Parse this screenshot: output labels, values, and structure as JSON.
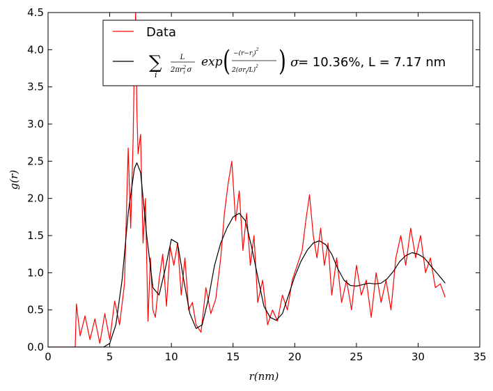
{
  "chart_data": {
    "type": "line",
    "xlabel": "r(nm)",
    "ylabel": "g(r)",
    "xlim": [
      0,
      35
    ],
    "ylim": [
      0,
      4.5
    ],
    "xticks": [
      "0",
      "5",
      "10",
      "15",
      "20",
      "25",
      "30",
      "35"
    ],
    "yticks": [
      "0.0",
      "0.5",
      "1.0",
      "1.5",
      "2.0",
      "2.5",
      "3.0",
      "3.5",
      "4.0",
      "4.5"
    ],
    "grid": false,
    "legend_position": "top-right",
    "colors": {
      "data": "#ff0000",
      "fit": "#000000"
    },
    "series": [
      {
        "name": "Data",
        "x": [
          0,
          2.2,
          2.3,
          2.6,
          3.0,
          3.4,
          3.8,
          4.2,
          4.6,
          5.0,
          5.4,
          5.8,
          6.2,
          6.5,
          6.7,
          6.9,
          7.0,
          7.1,
          7.2,
          7.3,
          7.5,
          7.7,
          7.9,
          8.1,
          8.3,
          8.5,
          8.7,
          9.0,
          9.3,
          9.6,
          9.9,
          10.2,
          10.5,
          10.8,
          11.1,
          11.4,
          11.7,
          12.0,
          12.4,
          12.8,
          13.2,
          13.6,
          14.0,
          14.3,
          14.6,
          14.9,
          15.2,
          15.5,
          15.8,
          16.1,
          16.4,
          16.7,
          17.0,
          17.4,
          17.8,
          18.2,
          18.6,
          19.0,
          19.4,
          19.8,
          20.2,
          20.6,
          20.9,
          21.2,
          21.5,
          21.8,
          22.1,
          22.4,
          22.7,
          23.0,
          23.4,
          23.8,
          24.2,
          24.6,
          25.0,
          25.4,
          25.8,
          26.2,
          26.6,
          27.0,
          27.4,
          27.8,
          28.2,
          28.6,
          29.0,
          29.4,
          29.8,
          30.2,
          30.6,
          31.0,
          31.4,
          31.8,
          32.2
        ],
        "values": [
          0,
          0,
          0.58,
          0.15,
          0.42,
          0.1,
          0.38,
          0.05,
          0.45,
          0.1,
          0.62,
          0.3,
          0.85,
          2.68,
          1.6,
          2.8,
          3.9,
          4.5,
          3.2,
          2.6,
          2.86,
          1.4,
          2.0,
          0.35,
          1.2,
          0.5,
          0.4,
          0.9,
          1.25,
          0.55,
          1.35,
          1.1,
          1.4,
          0.7,
          1.2,
          0.5,
          0.6,
          0.3,
          0.2,
          0.8,
          0.45,
          0.65,
          1.2,
          1.8,
          2.2,
          2.5,
          1.7,
          2.1,
          1.3,
          1.8,
          1.1,
          1.5,
          0.6,
          0.9,
          0.3,
          0.5,
          0.35,
          0.7,
          0.5,
          0.9,
          1.1,
          1.3,
          1.7,
          2.05,
          1.5,
          1.2,
          1.6,
          1.1,
          1.4,
          0.7,
          1.2,
          0.6,
          0.9,
          0.5,
          1.1,
          0.7,
          0.9,
          0.4,
          1.0,
          0.6,
          0.9,
          0.5,
          1.2,
          1.5,
          1.1,
          1.6,
          1.2,
          1.5,
          1.0,
          1.2,
          0.8,
          0.85,
          0.67
        ]
      },
      {
        "name": "fit",
        "x": [
          0,
          4.5,
          5.0,
          5.5,
          6.0,
          6.5,
          7.0,
          7.2,
          7.5,
          8.0,
          8.5,
          9.0,
          9.5,
          10.0,
          10.5,
          11.0,
          11.5,
          12.0,
          12.5,
          13.0,
          13.5,
          14.0,
          14.5,
          15.0,
          15.5,
          16.0,
          16.5,
          17.0,
          17.5,
          18.0,
          18.5,
          19.0,
          19.5,
          20.0,
          20.5,
          21.0,
          21.5,
          22.0,
          22.5,
          23.0,
          23.5,
          24.0,
          24.5,
          25.0,
          25.5,
          26.0,
          26.5,
          27.0,
          27.5,
          28.0,
          28.5,
          29.0,
          29.5,
          30.0,
          30.5,
          31.0,
          31.5,
          32.0,
          32.2
        ],
        "values": [
          0,
          0,
          0.05,
          0.3,
          0.9,
          1.8,
          2.4,
          2.48,
          2.35,
          1.5,
          0.8,
          0.7,
          1.05,
          1.45,
          1.4,
          0.9,
          0.45,
          0.25,
          0.3,
          0.65,
          1.1,
          1.4,
          1.6,
          1.75,
          1.8,
          1.7,
          1.35,
          0.95,
          0.55,
          0.4,
          0.36,
          0.45,
          0.7,
          0.95,
          1.15,
          1.3,
          1.4,
          1.43,
          1.38,
          1.25,
          1.05,
          0.9,
          0.83,
          0.82,
          0.84,
          0.86,
          0.85,
          0.86,
          0.92,
          1.02,
          1.15,
          1.23,
          1.27,
          1.25,
          1.2,
          1.1,
          1.0,
          0.9,
          0.86
        ]
      }
    ],
    "legend": {
      "data_label": "Data",
      "fit_formula_sum": "∑",
      "fit_formula_index": "i",
      "fit_formula_frac1_num": "L",
      "fit_formula_frac1_den": "2πr",
      "fit_formula_frac1_den_sup": "2",
      "fit_formula_frac1_den_sub": "i",
      "fit_formula_frac1_den_tail": " σ",
      "fit_formula_exp": "exp",
      "fit_formula_frac2_num": "−(r−r",
      "fit_formula_frac2_num_sub": "i",
      "fit_formula_frac2_num_tail": ")",
      "fit_formula_frac2_num_sup": "2",
      "fit_formula_frac2_den": "2(σr",
      "fit_formula_frac2_den_sub": "i",
      "fit_formula_frac2_den_tail": "/L)",
      "fit_formula_frac2_den_sup": "2",
      "fit_sigma_symbol": "σ",
      "fit_params": " = 10.36%, L = 7.17 nm"
    }
  }
}
